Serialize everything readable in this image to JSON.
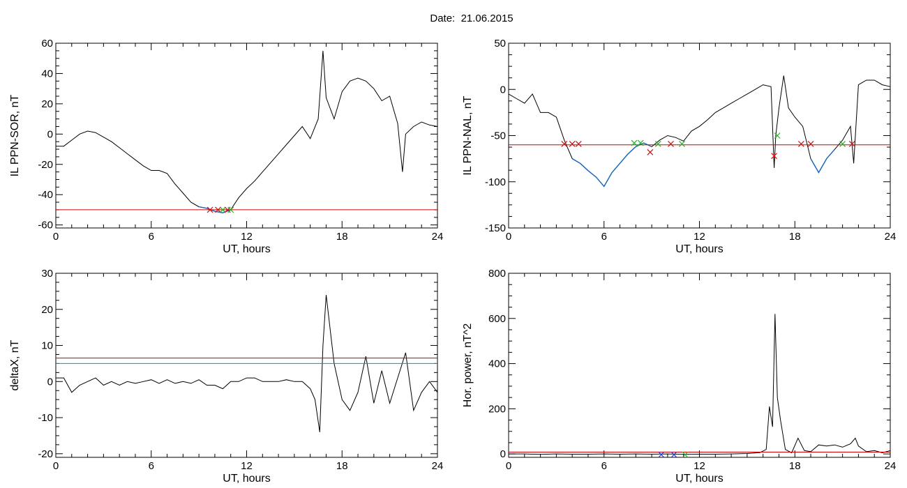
{
  "title": {
    "prefix": "Date:",
    "date": "21.06.2015"
  },
  "colors": {
    "series": "#000000",
    "threshold": "#cc0000",
    "threshold2": "#0097a7",
    "below": "#1565c0",
    "cross_red": "#d01010",
    "cross_green": "#22b522",
    "cross_blue": "#1a2fd0"
  },
  "chart_data": [
    {
      "type": "line",
      "ylabel": "IL PPN-SOR, nT",
      "xlabel": "UT, hours",
      "xlim": [
        0,
        24
      ],
      "ylim": [
        -62,
        60
      ],
      "xticks": [
        0,
        6,
        12,
        18,
        24
      ],
      "yticks": [
        -60,
        -40,
        -20,
        0,
        20,
        40,
        60
      ],
      "thresholds": [
        {
          "value": -50,
          "color": "threshold"
        }
      ],
      "highlight_below": -50,
      "x": [
        0,
        0.5,
        1,
        1.5,
        2,
        2.5,
        3,
        3.5,
        4,
        4.5,
        5,
        5.5,
        6,
        6.5,
        7,
        7.5,
        8,
        8.5,
        9,
        9.5,
        10,
        10.5,
        11,
        11.5,
        12,
        12.5,
        13,
        13.5,
        14,
        14.5,
        15,
        15.5,
        16,
        16.5,
        16.8,
        17,
        17.5,
        18,
        18.5,
        19,
        19.5,
        20,
        20.5,
        21,
        21.5,
        21.8,
        22,
        22.5,
        23,
        23.5,
        24
      ],
      "y": [
        -8,
        -8,
        -4,
        0,
        2,
        1,
        -2,
        -5,
        -9,
        -13,
        -17,
        -21,
        -24,
        -24,
        -26,
        -33,
        -39,
        -45,
        -48,
        -49,
        -51,
        -52,
        -50,
        -42,
        -36,
        -31,
        -25,
        -19,
        -13,
        -7,
        -1,
        5,
        -3,
        10,
        55,
        24,
        10,
        28,
        35,
        37,
        35,
        30,
        22,
        25,
        7,
        -25,
        0,
        5,
        8,
        6,
        5
      ],
      "markers": [
        {
          "x": 9.7,
          "y": -50,
          "color": "cross_red"
        },
        {
          "x": 10.2,
          "y": -50,
          "color": "cross_red"
        },
        {
          "x": 10.5,
          "y": -50,
          "color": "cross_green"
        },
        {
          "x": 10.8,
          "y": -50,
          "color": "cross_red"
        },
        {
          "x": 11.0,
          "y": -50,
          "color": "cross_green"
        }
      ]
    },
    {
      "type": "line",
      "ylabel": "IL PPN-NAL, nT",
      "xlabel": "UT, hours",
      "xlim": [
        0,
        24
      ],
      "ylim": [
        -150,
        50
      ],
      "xticks": [
        0,
        6,
        12,
        18,
        24
      ],
      "yticks": [
        -150,
        -100,
        -50,
        0,
        50
      ],
      "thresholds": [
        {
          "value": -60,
          "color": "threshold"
        }
      ],
      "highlight_below": -60,
      "x": [
        0,
        0.5,
        1,
        1.5,
        2,
        2.5,
        3,
        3.5,
        4,
        4.5,
        5,
        5.5,
        6,
        6.5,
        7,
        7.5,
        8,
        8.5,
        9,
        9.5,
        10,
        10.5,
        11,
        11.5,
        12,
        12.5,
        13,
        13.5,
        14,
        14.5,
        15,
        15.5,
        16,
        16.5,
        16.7,
        16.8,
        17,
        17.3,
        17.6,
        18,
        18.5,
        19,
        19.5,
        20,
        20.5,
        21,
        21.5,
        21.7,
        22,
        22.5,
        23,
        23.5,
        24
      ],
      "y": [
        -5,
        -10,
        -15,
        -5,
        -25,
        -25,
        -30,
        -55,
        -75,
        -80,
        -88,
        -95,
        -105,
        -90,
        -80,
        -70,
        -62,
        -58,
        -62,
        -55,
        -50,
        -52,
        -56,
        -45,
        -40,
        -33,
        -25,
        -20,
        -15,
        -10,
        -5,
        0,
        5,
        3,
        -85,
        -50,
        -20,
        15,
        -20,
        -30,
        -40,
        -75,
        -90,
        -75,
        -65,
        -55,
        -40,
        -80,
        5,
        10,
        10,
        5,
        3
      ],
      "markers": [
        {
          "x": 3.5,
          "y": -59,
          "color": "cross_red"
        },
        {
          "x": 4.0,
          "y": -59,
          "color": "cross_red"
        },
        {
          "x": 4.4,
          "y": -59,
          "color": "cross_red"
        },
        {
          "x": 7.9,
          "y": -58,
          "color": "cross_green"
        },
        {
          "x": 8.3,
          "y": -58,
          "color": "cross_green"
        },
        {
          "x": 8.9,
          "y": -68,
          "color": "cross_red"
        },
        {
          "x": 9.4,
          "y": -59,
          "color": "cross_green"
        },
        {
          "x": 10.2,
          "y": -59,
          "color": "cross_red"
        },
        {
          "x": 10.9,
          "y": -59,
          "color": "cross_green"
        },
        {
          "x": 16.7,
          "y": -72,
          "color": "cross_red"
        },
        {
          "x": 16.9,
          "y": -50,
          "color": "cross_green"
        },
        {
          "x": 18.4,
          "y": -59,
          "color": "cross_red"
        },
        {
          "x": 19.0,
          "y": -59,
          "color": "cross_red"
        },
        {
          "x": 21.0,
          "y": -59,
          "color": "cross_green"
        },
        {
          "x": 21.6,
          "y": -59,
          "color": "cross_red"
        }
      ]
    },
    {
      "type": "line",
      "ylabel": "deltaX, nT",
      "xlabel": "UT, hours",
      "xlim": [
        0,
        24
      ],
      "ylim": [
        -21,
        30
      ],
      "xticks": [
        0,
        6,
        12,
        18,
        24
      ],
      "yticks": [
        -20,
        -10,
        0,
        10,
        20,
        30
      ],
      "thresholds": [
        {
          "value": 6.5,
          "color": "threshold"
        },
        {
          "value": 5,
          "color": "threshold2"
        }
      ],
      "x": [
        0,
        0.5,
        1,
        1.5,
        2,
        2.5,
        3,
        3.5,
        4,
        4.5,
        5,
        5.5,
        6,
        6.5,
        7,
        7.5,
        8,
        8.5,
        9,
        9.5,
        10,
        10.5,
        11,
        11.5,
        12,
        12.5,
        13,
        13.5,
        14,
        14.5,
        15,
        15.5,
        16,
        16.3,
        16.6,
        16.8,
        17,
        17.5,
        18,
        18.5,
        19,
        19.5,
        20,
        20.5,
        21,
        21.5,
        22,
        22.5,
        23,
        23.5,
        24
      ],
      "y": [
        1,
        1,
        -3,
        -1,
        0,
        1,
        -1,
        0,
        -1,
        0,
        -0.5,
        0,
        0.5,
        -0.5,
        0.5,
        -0.5,
        0,
        -0.5,
        0.5,
        -1,
        -1,
        -2,
        0,
        0,
        1,
        1,
        0,
        0,
        0,
        0.5,
        0,
        0,
        -2,
        -5,
        -14,
        10,
        24,
        5,
        -5,
        -8,
        -3,
        7,
        -6,
        3,
        -6,
        1,
        8,
        -8,
        -3,
        0,
        -3
      ],
      "markers": []
    },
    {
      "type": "line",
      "ylabel": "Hor. power, nT^2",
      "xlabel": "UT, hours",
      "xlim": [
        0,
        24
      ],
      "ylim": [
        -15,
        800
      ],
      "xticks": [
        0,
        6,
        12,
        18,
        24
      ],
      "yticks": [
        0,
        200,
        400,
        600,
        800
      ],
      "thresholds": [
        {
          "value": 8,
          "color": "threshold"
        }
      ],
      "x": [
        0,
        1,
        2,
        3,
        4,
        5,
        6,
        7,
        8,
        9,
        10,
        11,
        12,
        13,
        14,
        15,
        15.8,
        16.2,
        16.4,
        16.6,
        16.75,
        16.9,
        17.1,
        17.4,
        17.8,
        18.2,
        18.6,
        19,
        19.5,
        20,
        20.5,
        21,
        21.5,
        21.8,
        22,
        22.5,
        23,
        23.5,
        24
      ],
      "y": [
        0,
        0,
        -2,
        0,
        -1,
        -1,
        0,
        -1,
        0,
        -1,
        0,
        -2,
        -1,
        -1,
        0,
        2,
        6,
        20,
        210,
        120,
        620,
        250,
        150,
        20,
        5,
        70,
        15,
        10,
        40,
        35,
        40,
        30,
        45,
        70,
        35,
        10,
        15,
        5,
        15
      ],
      "markers": [
        {
          "x": 9.6,
          "y": -3,
          "color": "cross_blue"
        },
        {
          "x": 10.4,
          "y": -3,
          "color": "cross_blue"
        },
        {
          "x": 11.1,
          "y": -3,
          "color": "cross_green"
        }
      ]
    }
  ]
}
